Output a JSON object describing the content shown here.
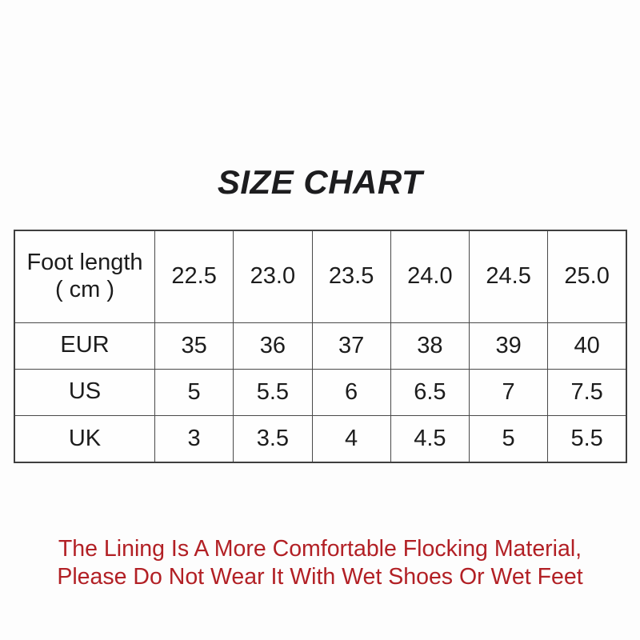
{
  "title": "SIZE CHART",
  "chart_data": {
    "type": "table",
    "title": "SIZE CHART",
    "row_headers": [
      "Foot length\n( cm )",
      "EUR",
      "US",
      "UK"
    ],
    "rows": [
      [
        "22.5",
        "23.0",
        "23.5",
        "24.0",
        "24.5",
        "25.0"
      ],
      [
        "35",
        "36",
        "37",
        "38",
        "39",
        "40"
      ],
      [
        "5",
        "5.5",
        "6",
        "6.5",
        "7",
        "7.5"
      ],
      [
        "3",
        "3.5",
        "4",
        "4.5",
        "5",
        "5.5"
      ]
    ],
    "layout_hints": {
      "grid": "all-borders",
      "header_column": "left",
      "text_align": "center"
    }
  },
  "note": {
    "line1": "The Lining Is A More Comfortable Flocking Material,",
    "line2": "Please Do Not Wear It With Wet Shoes Or Wet Feet"
  },
  "colors": {
    "title_text": "#1d1d1f",
    "table_text": "#1c1c1c",
    "table_border": "#4a4a4a",
    "note_text": "#b22025",
    "background": "#fdfdfd"
  }
}
